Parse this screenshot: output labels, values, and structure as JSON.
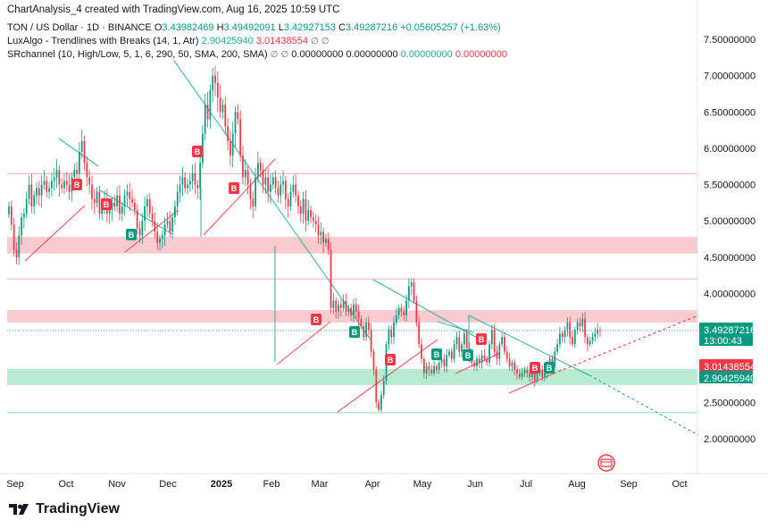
{
  "header": {
    "caption": "ChartAnalysis_4 created with TradingView.com, Aug 16, 2025 10:59 UTC"
  },
  "legend": {
    "symbol": "TON / US Dollar · 1D · BINANCE",
    "open_label": "O",
    "open": "3.43982469",
    "high_label": "H",
    "high": "3.49492091",
    "low_label": "L",
    "low": "3.42927153",
    "close_label": "C",
    "close": "3.49287216",
    "change": "+0.05605257 (+1.63%)",
    "luxalgo_name": "LuxAlgo - Trendlines with Breaks (14, 1, Atr)",
    "luxalgo_v1": "2.90425940",
    "luxalgo_v2": "3.01438554",
    "srchannel_name": "SRchannel (10, High/Low, 5, 1, 6, 290, 50, SMA, 200, SMA)",
    "sr_v1": "0.00000000",
    "sr_v2": "0.00000000",
    "sr_v3": "0.00000000",
    "sr_v4": "0.00000000",
    "eye_icon": "∅"
  },
  "colors": {
    "up": "#089981",
    "down": "#f23645",
    "trend_teal": "#22ab94",
    "trend_red": "#f23645",
    "resistance_fill": "#f7b9bf",
    "support_fill": "#9fe6c3"
  },
  "price_tags": {
    "last_price": "3.49287216",
    "countdown": "13:00:43",
    "lux_red": "3.01438554",
    "lux_green": "2.90425940"
  },
  "footer": {
    "brand": "TradingView"
  },
  "chart_data": {
    "type": "candlestick",
    "title": "TON / US Dollar · 1D · BINANCE",
    "y_axis": {
      "side": "right",
      "min": 1.8,
      "max": 7.7,
      "ticks": [
        "7.50000000",
        "7.00000000",
        "6.50000000",
        "6.00000000",
        "5.50000000",
        "5.00000000",
        "4.50000000",
        "4.00000000",
        "3.50000000",
        "3.00000000",
        "2.50000000",
        "2.00000000"
      ]
    },
    "x_axis": {
      "ticks": [
        "Sep",
        "Oct",
        "Nov",
        "Dec",
        "2025",
        "Feb",
        "Mar",
        "Apr",
        "May",
        "Jun",
        "Jul",
        "Aug",
        "Sep",
        "Oct"
      ],
      "bold_tick": "2025"
    },
    "zones": [
      {
        "kind": "resistance",
        "low": 4.55,
        "high": 4.78
      },
      {
        "kind": "resistance",
        "low": 3.6,
        "high": 3.77
      },
      {
        "kind": "support",
        "low": 2.74,
        "high": 2.96
      },
      {
        "kind": "line",
        "value": 5.65
      },
      {
        "kind": "line",
        "value": 4.2
      },
      {
        "kind": "line",
        "value": 2.36
      }
    ],
    "candles_close": [
      5.2,
      4.95,
      4.6,
      4.5,
      4.8,
      5.05,
      5.1,
      5.3,
      5.5,
      5.2,
      5.35,
      5.45,
      5.35,
      5.5,
      5.55,
      5.4,
      5.45,
      5.55,
      5.6,
      5.7,
      5.5,
      5.45,
      5.55,
      5.5,
      5.4,
      5.6,
      5.7,
      5.65,
      5.95,
      6.1,
      5.8,
      5.6,
      5.5,
      5.3,
      5.25,
      5.4,
      5.1,
      5.2,
      5.3,
      5.1,
      5.15,
      5.25,
      5.2,
      5.35,
      5.1,
      5.2,
      5.35,
      5.4,
      5.3,
      5.25,
      5.15,
      4.9,
      4.8,
      5.0,
      5.2,
      5.3,
      5.1,
      5.0,
      4.85,
      4.7,
      4.75,
      4.8,
      4.95,
      5.0,
      4.85,
      5.05,
      5.2,
      5.4,
      5.5,
      5.6,
      5.45,
      5.5,
      5.55,
      5.65,
      5.5,
      5.45,
      5.8,
      6.2,
      6.6,
      6.4,
      6.8,
      7.0,
      6.9,
      6.7,
      6.5,
      6.6,
      6.3,
      6.1,
      5.9,
      6.2,
      6.5,
      6.4,
      5.9,
      5.6,
      5.7,
      5.5,
      5.3,
      5.2,
      5.6,
      5.8,
      5.7,
      5.5,
      5.6,
      5.4,
      5.5,
      5.6,
      5.45,
      5.35,
      5.5,
      5.55,
      5.3,
      5.2,
      5.4,
      5.5,
      5.35,
      5.2,
      5.1,
      5.3,
      5.0,
      5.15,
      5.05,
      5.0,
      4.95,
      4.8,
      4.85,
      4.7,
      4.75,
      4.6,
      3.8,
      3.9,
      3.75,
      3.85,
      3.8,
      3.9,
      3.75,
      3.8,
      3.7,
      3.85,
      3.75,
      3.65,
      3.55,
      3.4,
      3.6,
      3.5,
      3.2,
      2.95,
      2.5,
      2.4,
      2.6,
      2.8,
      3.3,
      3.5,
      3.4,
      3.6,
      3.7,
      3.8,
      3.75,
      3.7,
      3.9,
      4.1,
      4.15,
      3.9,
      3.6,
      3.3,
      3.1,
      2.9,
      3.0,
      2.95,
      2.9,
      3.0,
      2.95,
      3.05,
      3.1,
      3.0,
      3.15,
      3.2,
      3.1,
      3.3,
      3.4,
      3.2,
      3.3,
      3.45,
      3.25,
      3.1,
      3.05,
      3.0,
      3.1,
      3.05,
      3.15,
      3.1,
      3.05,
      3.3,
      3.5,
      3.2,
      3.1,
      3.3,
      3.4,
      3.2,
      3.1,
      3.0,
      3.05,
      2.95,
      2.9,
      2.85,
      2.9,
      2.95,
      2.9,
      2.85,
      2.9,
      2.8,
      2.9,
      2.95,
      2.85,
      2.9,
      3.0,
      3.1,
      3.0,
      3.2,
      3.3,
      3.45,
      3.4,
      3.5,
      3.6,
      3.4,
      3.3,
      3.5,
      3.6,
      3.55,
      3.65,
      3.4,
      3.3,
      3.35,
      3.4,
      3.45,
      3.5,
      3.49
    ]
  }
}
